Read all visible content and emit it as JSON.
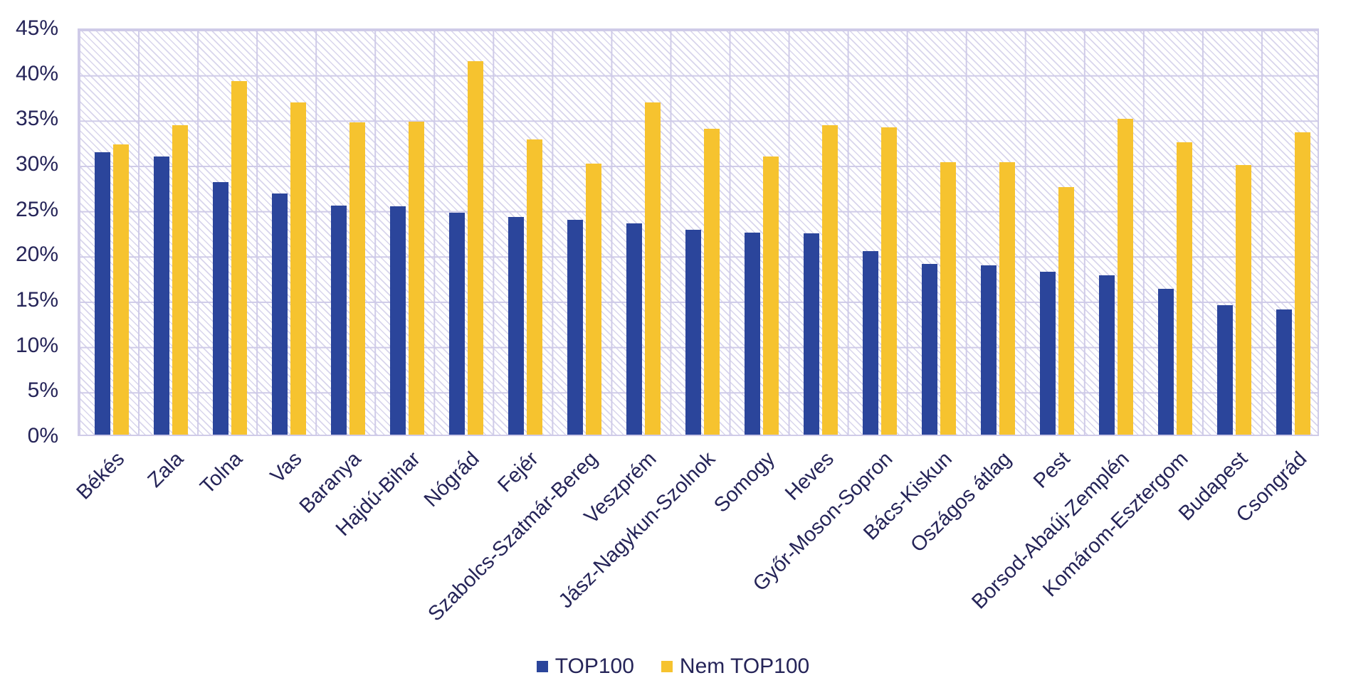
{
  "chart_data": {
    "type": "bar",
    "title": "",
    "xlabel": "",
    "ylabel": "",
    "categories": [
      "Békés",
      "Zala",
      "Tolna",
      "Vas",
      "Baranya",
      "Hajdú-Bihar",
      "Nógrád",
      "Fejér",
      "Szabolcs-Szatmár-Bereg",
      "Veszprém",
      "Jász-Nagykun-Szolnok",
      "Somogy",
      "Heves",
      "Győr-Moson-Sopron",
      "Bács-Kiskun",
      "Oszágos átlag",
      "Pest",
      "Borsod-Abaúj-Zemplén",
      "Komárom-Esztergom",
      "Budapest",
      "Csongrád"
    ],
    "series": [
      {
        "name": "TOP100",
        "color": "#2b459b",
        "values": [
          31.4,
          30.9,
          28.1,
          26.8,
          25.5,
          25.4,
          24.7,
          24.2,
          23.9,
          23.5,
          22.8,
          22.5,
          22.4,
          20.4,
          19.0,
          18.8,
          18.1,
          17.7,
          16.2,
          14.4,
          13.9
        ]
      },
      {
        "name": "Nem TOP100",
        "color": "#f6c32f",
        "values": [
          32.3,
          34.4,
          39.3,
          36.9,
          34.7,
          34.8,
          41.5,
          32.8,
          30.1,
          36.9,
          34.0,
          30.9,
          34.4,
          34.2,
          30.3,
          30.3,
          27.5,
          35.1,
          32.5,
          30.0,
          33.6
        ]
      }
    ],
    "ylim": [
      0,
      45
    ],
    "ytick_labels": [
      "0%",
      "5%",
      "10%",
      "15%",
      "20%",
      "25%",
      "30%",
      "35%",
      "40%",
      "45%"
    ],
    "grid": true,
    "plot_background": "diagonal-hatch",
    "legend_position": "bottom",
    "colors": {
      "gridline": "#cfcbe8",
      "axis_text": "#252458",
      "hatch": "#9e96d0",
      "background": "#ffffff"
    }
  }
}
